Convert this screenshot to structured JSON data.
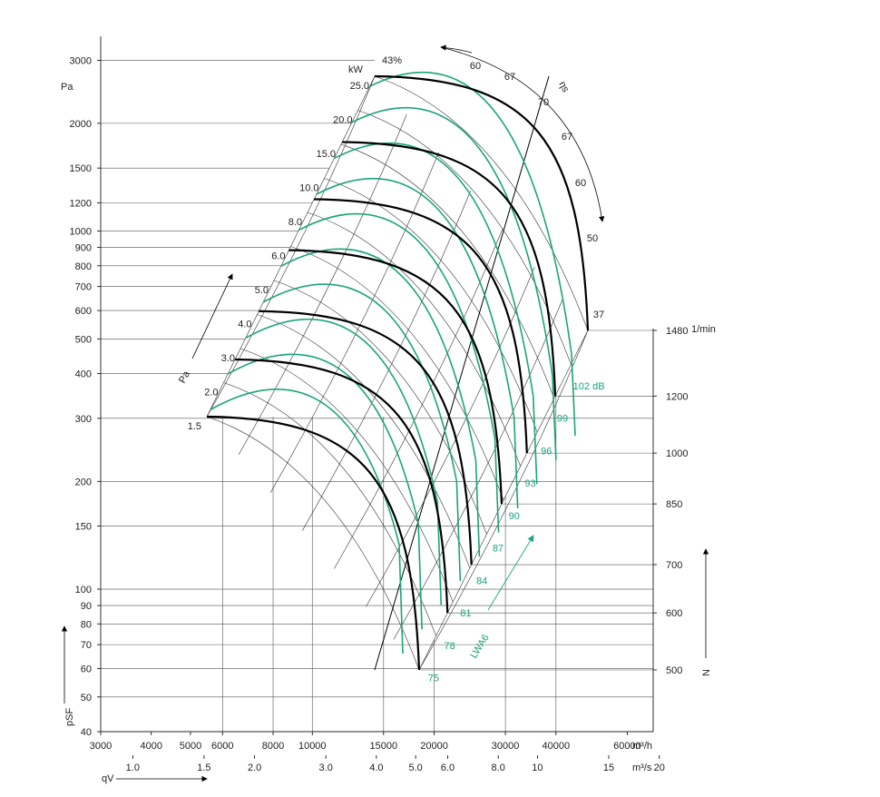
{
  "chart_data": {
    "type": "line",
    "title": "",
    "y_unit": "Pa",
    "y_symbol": "pSF",
    "y_ticks": [
      3000,
      2000,
      1500,
      1200,
      1000,
      900,
      800,
      700,
      600,
      500,
      400,
      300,
      200,
      150,
      100,
      90,
      80,
      70,
      60,
      50,
      40
    ],
    "ylim": [
      40,
      3500
    ],
    "x_symbol": "qV",
    "x_unit_top": "m³/h",
    "x_unit_bottom": "m³/s",
    "x_ticks_m3h": [
      "3000",
      "4000",
      "5000",
      "6000",
      "8000",
      "10000",
      "15000",
      "20000",
      "30000",
      "40000",
      "60000"
    ],
    "x_ticks_m3s": [
      "1.0",
      "1.5",
      "2.0",
      "3.0",
      "4.0",
      "5.0",
      "6.0",
      "8.0",
      "10",
      "15",
      "20"
    ],
    "speed_symbol": "N",
    "speed_unit": "1/min",
    "speeds": [
      {
        "n": "1480",
        "pmax": 2600
      },
      {
        "n": "1200",
        "pmax": 1700
      },
      {
        "n": "1000",
        "pmax": 1180
      },
      {
        "n": "850",
        "pmax": 850
      },
      {
        "n": "700",
        "pmax": 580
      },
      {
        "n": "600",
        "pmax": 425
      },
      {
        "n": "500",
        "pmax": 295
      }
    ],
    "power_unit": "kW",
    "power_symbol": "Pa",
    "power_labels": [
      "25.0",
      "20.0",
      "15.0",
      "10.0",
      "8.0",
      "6.0",
      "5.0",
      "4.0",
      "3.0",
      "2.0",
      "1.5"
    ],
    "efficiency_symbol": "ηs",
    "efficiency_labels": [
      "43%",
      "60",
      "67",
      "70",
      "67",
      "60",
      "50",
      "37"
    ],
    "sound_symbol": "LWA6",
    "sound_labels": [
      "102 dB",
      "99",
      "96",
      "93",
      "90",
      "87",
      "84",
      "81",
      "78",
      "75"
    ]
  }
}
